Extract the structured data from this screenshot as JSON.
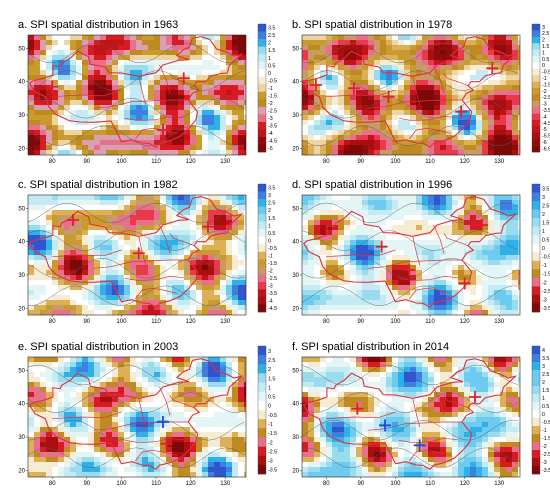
{
  "figure": {
    "panels": [
      {
        "id": "a",
        "title": "a. SPI spatial distribution in 1963",
        "scale": [
          "3.5",
          "2.5",
          "2",
          "1.5",
          "1",
          "0.5",
          "0",
          "-0.5",
          "-1",
          "-1.5",
          "-2",
          "-2.5",
          "-3",
          "-3.5",
          "-4",
          "-4.5",
          "-5"
        ],
        "markers": [
          [
            80,
            38.5,
            "red"
          ],
          [
            118,
            41,
            "red"
          ],
          [
            112,
            25.5,
            "red"
          ]
        ]
      },
      {
        "id": "b",
        "title": "b. SPI spatial distribution in 1978",
        "scale": [
          "3",
          "2.5",
          "2",
          "1.5",
          "1",
          "0.5",
          "0",
          "-0.5",
          "-1",
          "-1.5",
          "-2",
          "-2.5",
          "-3",
          "-3.5",
          "-4",
          "-4.5",
          "-5",
          "-5.5",
          "-6",
          "-6.5"
        ],
        "markers": [
          [
            77,
            39,
            "red"
          ],
          [
            88,
            38,
            "red"
          ],
          [
            98,
            35.5,
            "red"
          ],
          [
            119,
            31,
            "red"
          ],
          [
            128,
            44,
            "red"
          ]
        ]
      },
      {
        "id": "c",
        "title": "c. SPI spatial distribution in 1982",
        "scale": [
          "3.5",
          "3",
          "2.5",
          "2",
          "1.5",
          "1",
          "0.5",
          "0",
          "-0.5",
          "-1",
          "-1.5",
          "-2",
          "-2.5",
          "-3",
          "-3.5",
          "-4",
          "-4.5"
        ],
        "markers": [
          [
            86,
            46.5,
            "red"
          ],
          [
            105,
            36.5,
            "red"
          ],
          [
            125,
            44.5,
            "red"
          ]
        ]
      },
      {
        "id": "d",
        "title": "d. SPI spatial distribution in 1996",
        "scale": [
          "3.5",
          "3",
          "2.5",
          "2",
          "1.5",
          "1",
          "0.5",
          "0",
          "-0.5",
          "-1",
          "-1.5",
          "-2",
          "-2.5",
          "-3",
          "-3.5"
        ],
        "markers": [
          [
            96,
            38.5,
            "red"
          ],
          [
            104,
            31.5,
            "red"
          ],
          [
            120,
            27.5,
            "red"
          ],
          [
            125,
            45,
            "red"
          ]
        ]
      },
      {
        "id": "e",
        "title": "e. SPI spatial distribution in 2003",
        "scale": [
          "3",
          "2.5",
          "2",
          "1.5",
          "1",
          "0.5",
          "0",
          "-0.5",
          "-1",
          "-1.5",
          "-2",
          "-2.5",
          "-3",
          "-3.5"
        ],
        "markers": [
          [
            112,
            34.5,
            "blue"
          ],
          [
            113,
            28,
            "red"
          ]
        ]
      },
      {
        "id": "f",
        "title": "f. SPI spatial distribution in 2014",
        "scale": [
          "4",
          "3.5",
          "3",
          "2.5",
          "2",
          "1.5",
          "1",
          "0.5",
          "0",
          "-0.5",
          "-1",
          "-1.5",
          "-2",
          "-2.5",
          "-3",
          "-3.5"
        ],
        "markers": [
          [
            89,
            38.5,
            "red"
          ],
          [
            97,
            33.5,
            "blue"
          ],
          [
            107,
            27.5,
            "blue"
          ],
          [
            123,
            42,
            "red"
          ]
        ]
      }
    ]
  },
  "chart_data": {
    "type": "heatmap",
    "x": {
      "ticks": [
        80,
        90,
        100,
        110,
        120,
        130
      ],
      "range": [
        73,
        136
      ]
    },
    "y": {
      "ticks": [
        20,
        30,
        40,
        50
      ],
      "range": [
        18,
        54
      ]
    },
    "panels": [
      {
        "year": 1963,
        "scale_min": -5,
        "scale_max": 3.5
      },
      {
        "year": 1978,
        "scale_min": -6.5,
        "scale_max": 3
      },
      {
        "year": 1982,
        "scale_min": -4.5,
        "scale_max": 3.5
      },
      {
        "year": 1996,
        "scale_min": -3.5,
        "scale_max": 3.5
      },
      {
        "year": 2003,
        "scale_min": -3.5,
        "scale_max": 3
      },
      {
        "year": 2014,
        "scale_min": -3.5,
        "scale_max": 4
      }
    ],
    "colors": {
      "wet_strong": "#3a5fd6",
      "wet": "#8fd8ec",
      "near_normal": "#f4eedc",
      "dry": "#d7a33a",
      "dry_strong": "#e0202a",
      "boundary": "#e0303c"
    }
  }
}
